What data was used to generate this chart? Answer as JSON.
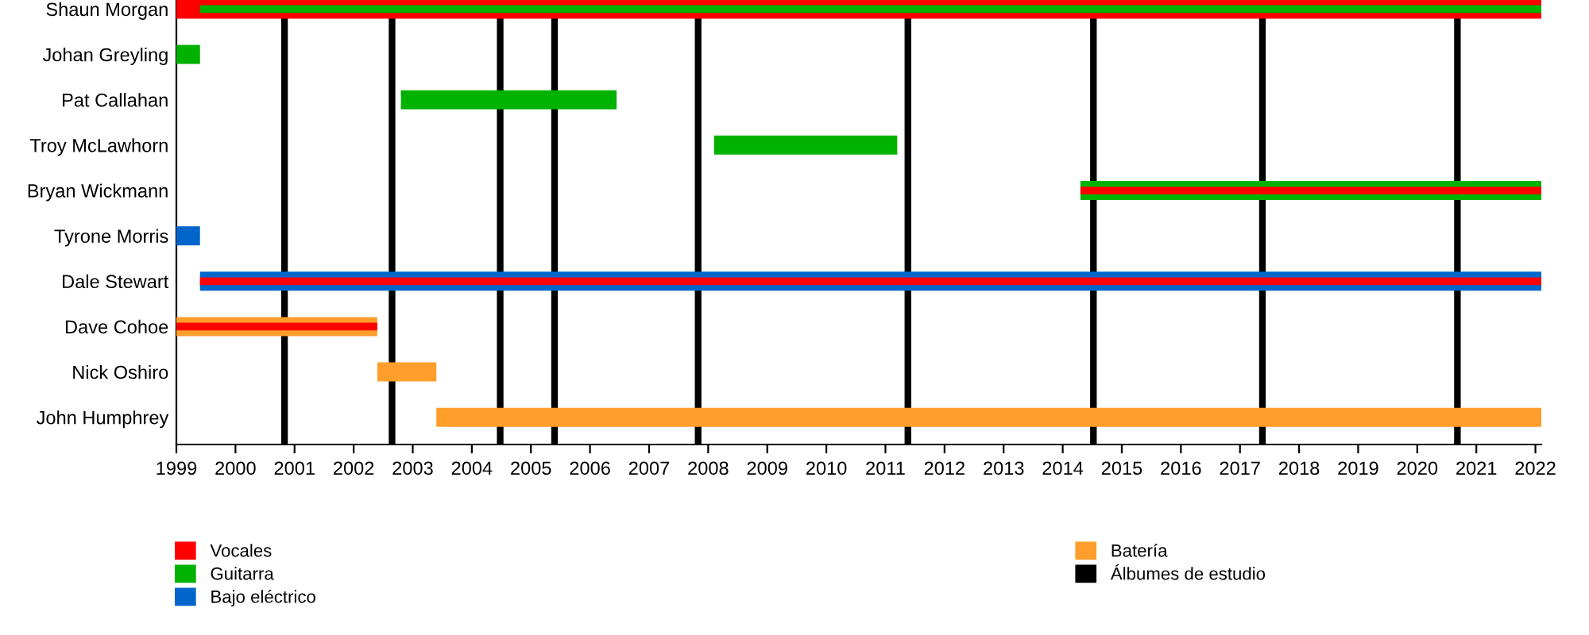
{
  "chart_data": {
    "type": "bar",
    "orientation": "horizontal",
    "categories": [
      "Shaun Morgan",
      "Johan Greyling",
      "Pat Callahan",
      "Troy McLawhorn",
      "Bryan Wickmann",
      "Tyrone Morris",
      "Dale Stewart",
      "Dave Cohoe",
      "Nick Oshiro",
      "John Humphrey"
    ],
    "series": [
      {
        "name": "Vocales",
        "color": "#ff0000",
        "base": [
          1999.0,
          null,
          null,
          null,
          2014.3,
          null,
          1999.4,
          1999.0,
          null,
          null
        ],
        "values": [
          23.1,
          null,
          null,
          null,
          7.8,
          null,
          22.7,
          3.4,
          null,
          null
        ]
      },
      {
        "name": "Guitarra",
        "color": "#00b200",
        "base": [
          1999.4,
          1999.0,
          2002.8,
          2008.1,
          2014.3,
          null,
          null,
          null,
          null,
          null
        ],
        "values": [
          22.7,
          0.4,
          3.65,
          3.1,
          7.8,
          null,
          null,
          null,
          null,
          null
        ]
      },
      {
        "name": "Bajo eléctrico",
        "color": "#0066cc",
        "base": [
          null,
          null,
          null,
          null,
          null,
          1999.0,
          1999.4,
          null,
          null,
          null
        ],
        "values": [
          null,
          null,
          null,
          null,
          null,
          0.4,
          22.7,
          null,
          null,
          null
        ]
      },
      {
        "name": "Batería",
        "color": "#ff9e2a",
        "base": [
          null,
          null,
          null,
          null,
          null,
          null,
          null,
          1999.0,
          2002.4,
          2003.4
        ],
        "values": [
          null,
          null,
          null,
          null,
          null,
          null,
          null,
          3.4,
          1.0,
          18.7
        ]
      }
    ],
    "ref_lines": [
      {
        "axis": "x",
        "value": 2000.83,
        "label": "Álbumes de estudio",
        "color": "#000000"
      },
      {
        "axis": "x",
        "value": 2002.65,
        "color": "#000000"
      },
      {
        "axis": "x",
        "value": 2004.48,
        "color": "#000000"
      },
      {
        "axis": "x",
        "value": 2005.4,
        "color": "#000000"
      },
      {
        "axis": "x",
        "value": 2007.83,
        "color": "#000000"
      },
      {
        "axis": "x",
        "value": 2011.38,
        "color": "#000000"
      },
      {
        "axis": "x",
        "value": 2014.52,
        "color": "#000000"
      },
      {
        "axis": "x",
        "value": 2017.38,
        "color": "#000000"
      },
      {
        "axis": "x",
        "value": 2020.68,
        "color": "#000000"
      }
    ],
    "xlim": [
      1999,
      2022.1
    ],
    "xticks": [
      1999,
      2000,
      2001,
      2002,
      2003,
      2004,
      2005,
      2006,
      2007,
      2008,
      2009,
      2010,
      2011,
      2012,
      2013,
      2014,
      2015,
      2016,
      2017,
      2018,
      2019,
      2020,
      2021,
      2022
    ],
    "grid": false,
    "legend": "bottom"
  }
}
